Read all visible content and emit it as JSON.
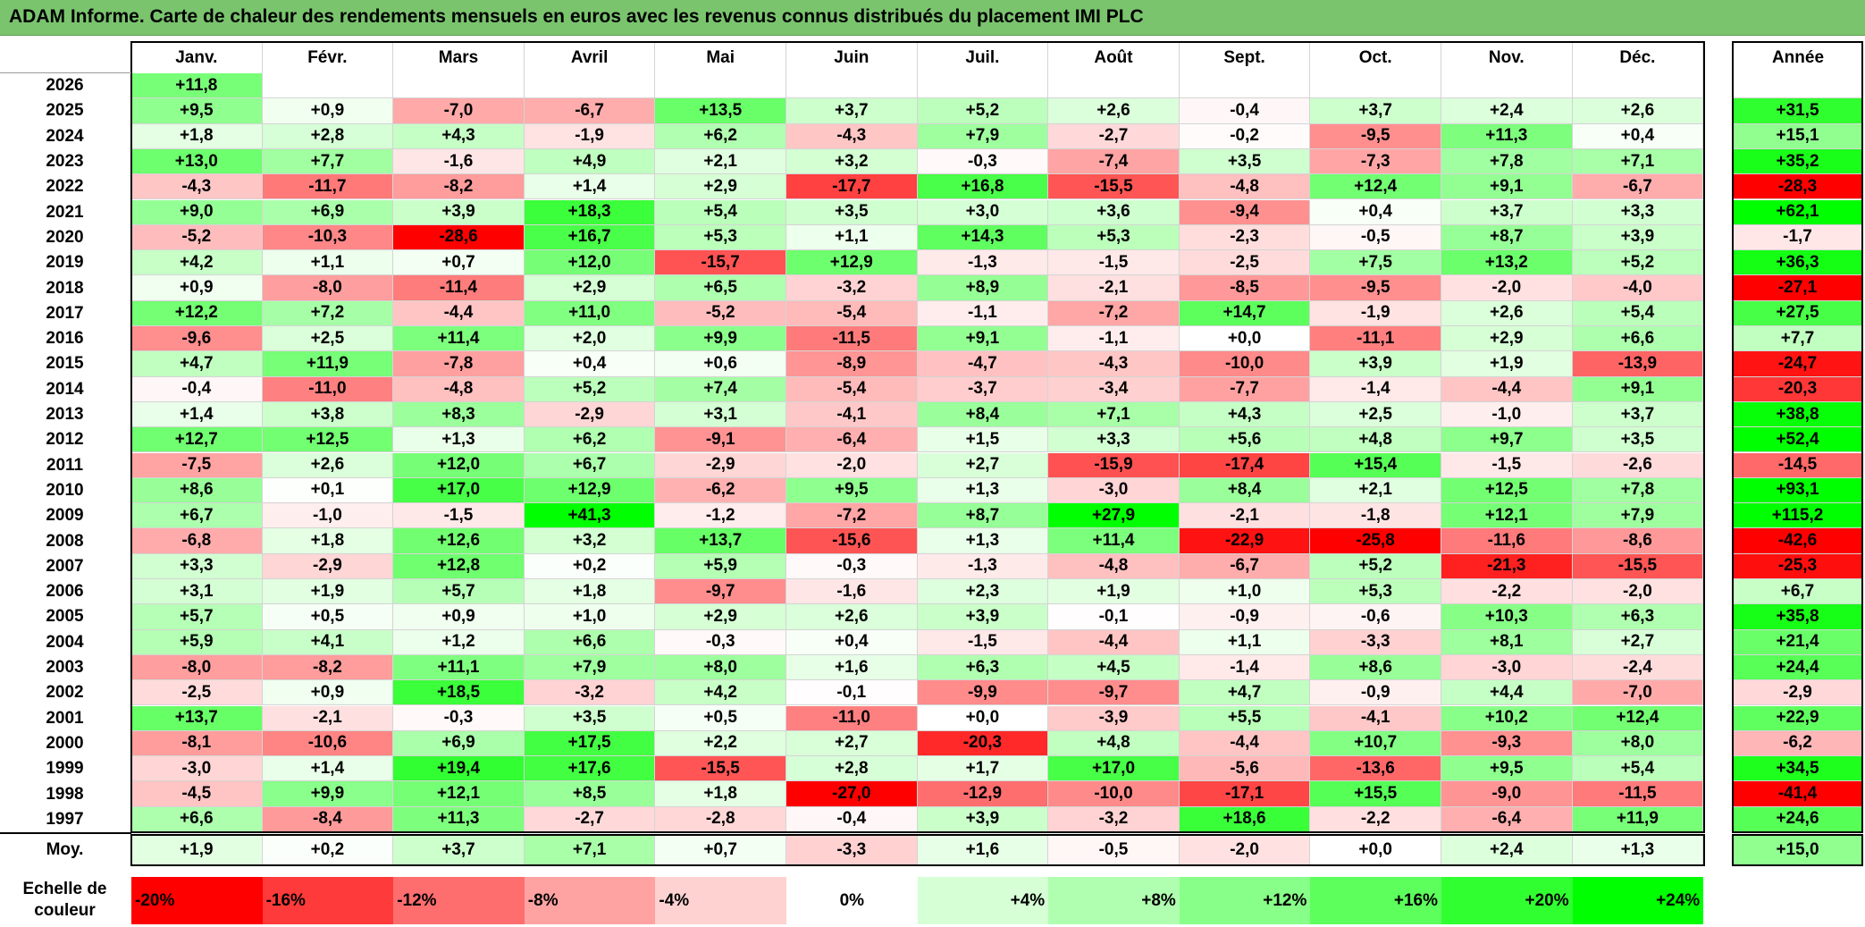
{
  "title": "ADAM Informe. Carte de chaleur des rendements mensuels en euros avec les revenus connus distribués du placement IMI PLC",
  "chart_data": {
    "type": "heatmap",
    "title": "ADAM Informe. Carte de chaleur des rendements mensuels en euros avec les revenus connus distribués du placement IMI PLC",
    "columns": [
      "Janv.",
      "Févr.",
      "Mars",
      "Avril",
      "Mai",
      "Juin",
      "Juil.",
      "Août",
      "Sept.",
      "Oct.",
      "Nov.",
      "Déc."
    ],
    "annual_label": "Année",
    "rows": [
      {
        "year": "2026",
        "months": [
          "+11,8",
          "",
          "",
          "",
          "",
          "",
          "",
          "",
          "",
          "",
          "",
          ""
        ],
        "annual": ""
      },
      {
        "year": "2025",
        "months": [
          "+9,5",
          "+0,9",
          "-7,0",
          "-6,7",
          "+13,5",
          "+3,7",
          "+5,2",
          "+2,6",
          "-0,4",
          "+3,7",
          "+2,4",
          "+2,6"
        ],
        "annual": "+31,5"
      },
      {
        "year": "2024",
        "months": [
          "+1,8",
          "+2,8",
          "+4,3",
          "-1,9",
          "+6,2",
          "-4,3",
          "+7,9",
          "-2,7",
          "-0,2",
          "-9,5",
          "+11,3",
          "+0,4"
        ],
        "annual": "+15,1"
      },
      {
        "year": "2023",
        "months": [
          "+13,0",
          "+7,7",
          "-1,6",
          "+4,9",
          "+2,1",
          "+3,2",
          "-0,3",
          "-7,4",
          "+3,5",
          "-7,3",
          "+7,8",
          "+7,1"
        ],
        "annual": "+35,2"
      },
      {
        "year": "2022",
        "months": [
          "-4,3",
          "-11,7",
          "-8,2",
          "+1,4",
          "+2,9",
          "-17,7",
          "+16,8",
          "-15,5",
          "-4,8",
          "+12,4",
          "+9,1",
          "-6,7"
        ],
        "annual": "-28,3"
      },
      {
        "year": "2021",
        "months": [
          "+9,0",
          "+6,9",
          "+3,9",
          "+18,3",
          "+5,4",
          "+3,5",
          "+3,0",
          "+3,6",
          "-9,4",
          "+0,4",
          "+3,7",
          "+3,3"
        ],
        "annual": "+62,1"
      },
      {
        "year": "2020",
        "months": [
          "-5,2",
          "-10,3",
          "-28,6",
          "+16,7",
          "+5,3",
          "+1,1",
          "+14,3",
          "+5,3",
          "-2,3",
          "-0,5",
          "+8,7",
          "+3,9"
        ],
        "annual": "-1,7"
      },
      {
        "year": "2019",
        "months": [
          "+4,2",
          "+1,1",
          "+0,7",
          "+12,0",
          "-15,7",
          "+12,9",
          "-1,3",
          "-1,5",
          "-2,5",
          "+7,5",
          "+13,2",
          "+5,2"
        ],
        "annual": "+36,3"
      },
      {
        "year": "2018",
        "months": [
          "+0,9",
          "-8,0",
          "-11,4",
          "+2,9",
          "+6,5",
          "-3,2",
          "+8,9",
          "-2,1",
          "-8,5",
          "-9,5",
          "-2,0",
          "-4,0"
        ],
        "annual": "-27,1"
      },
      {
        "year": "2017",
        "months": [
          "+12,2",
          "+7,2",
          "-4,4",
          "+11,0",
          "-5,2",
          "-5,4",
          "-1,1",
          "-7,2",
          "+14,7",
          "-1,9",
          "+2,6",
          "+5,4"
        ],
        "annual": "+27,5"
      },
      {
        "year": "2016",
        "months": [
          "-9,6",
          "+2,5",
          "+11,4",
          "+2,0",
          "+9,9",
          "-11,5",
          "+9,1",
          "-1,1",
          "+0,0",
          "-11,1",
          "+2,9",
          "+6,6"
        ],
        "annual": "+7,7"
      },
      {
        "year": "2015",
        "months": [
          "+4,7",
          "+11,9",
          "-7,8",
          "+0,4",
          "+0,6",
          "-8,9",
          "-4,7",
          "-4,3",
          "-10,0",
          "+3,9",
          "+1,9",
          "-13,9"
        ],
        "annual": "-24,7"
      },
      {
        "year": "2014",
        "months": [
          "-0,4",
          "-11,0",
          "-4,8",
          "+5,2",
          "+7,4",
          "-5,4",
          "-3,7",
          "-3,4",
          "-7,7",
          "-1,4",
          "-4,4",
          "+9,1"
        ],
        "annual": "-20,3"
      },
      {
        "year": "2013",
        "months": [
          "+1,4",
          "+3,8",
          "+8,3",
          "-2,9",
          "+3,1",
          "-4,1",
          "+8,4",
          "+7,1",
          "+4,3",
          "+2,5",
          "-1,0",
          "+3,7"
        ],
        "annual": "+38,8"
      },
      {
        "year": "2012",
        "months": [
          "+12,7",
          "+12,5",
          "+1,3",
          "+6,2",
          "-9,1",
          "-6,4",
          "+1,5",
          "+3,3",
          "+5,6",
          "+4,8",
          "+9,7",
          "+3,5"
        ],
        "annual": "+52,4"
      },
      {
        "year": "2011",
        "months": [
          "-7,5",
          "+2,6",
          "+12,0",
          "+6,7",
          "-2,9",
          "-2,0",
          "+2,7",
          "-15,9",
          "-17,4",
          "+15,4",
          "-1,5",
          "-2,6"
        ],
        "annual": "-14,5"
      },
      {
        "year": "2010",
        "months": [
          "+8,6",
          "+0,1",
          "+17,0",
          "+12,9",
          "-6,2",
          "+9,5",
          "+1,3",
          "-3,0",
          "+8,4",
          "+2,1",
          "+12,5",
          "+7,8"
        ],
        "annual": "+93,1"
      },
      {
        "year": "2009",
        "months": [
          "+6,7",
          "-1,0",
          "-1,5",
          "+41,3",
          "-1,2",
          "-7,2",
          "+8,7",
          "+27,9",
          "-2,1",
          "-1,8",
          "+12,1",
          "+7,9"
        ],
        "annual": "+115,2"
      },
      {
        "year": "2008",
        "months": [
          "-6,8",
          "+1,8",
          "+12,6",
          "+3,2",
          "+13,7",
          "-15,6",
          "+1,3",
          "+11,4",
          "-22,9",
          "-25,8",
          "-11,6",
          "-8,6"
        ],
        "annual": "-42,6"
      },
      {
        "year": "2007",
        "months": [
          "+3,3",
          "-2,9",
          "+12,8",
          "+0,2",
          "+5,9",
          "-0,3",
          "-1,3",
          "-4,8",
          "-6,7",
          "+5,2",
          "-21,3",
          "-15,5"
        ],
        "annual": "-25,3"
      },
      {
        "year": "2006",
        "months": [
          "+3,1",
          "+1,9",
          "+5,7",
          "+1,8",
          "-9,7",
          "-1,6",
          "+2,3",
          "+1,9",
          "+1,0",
          "+5,3",
          "-2,2",
          "-2,0"
        ],
        "annual": "+6,7"
      },
      {
        "year": "2005",
        "months": [
          "+5,7",
          "+0,5",
          "+0,9",
          "+1,0",
          "+2,9",
          "+2,6",
          "+3,9",
          "-0,1",
          "-0,9",
          "-0,6",
          "+10,3",
          "+6,3"
        ],
        "annual": "+35,8"
      },
      {
        "year": "2004",
        "months": [
          "+5,9",
          "+4,1",
          "+1,2",
          "+6,6",
          "-0,3",
          "+0,4",
          "-1,5",
          "-4,4",
          "+1,1",
          "-3,3",
          "+8,1",
          "+2,7"
        ],
        "annual": "+21,4"
      },
      {
        "year": "2003",
        "months": [
          "-8,0",
          "-8,2",
          "+11,1",
          "+7,9",
          "+8,0",
          "+1,6",
          "+6,3",
          "+4,5",
          "-1,4",
          "+8,6",
          "-3,0",
          "-2,4"
        ],
        "annual": "+24,4"
      },
      {
        "year": "2002",
        "months": [
          "-2,5",
          "+0,9",
          "+18,5",
          "-3,2",
          "+4,2",
          "-0,1",
          "-9,9",
          "-9,7",
          "+4,7",
          "-0,9",
          "+4,4",
          "-7,0"
        ],
        "annual": "-2,9"
      },
      {
        "year": "2001",
        "months": [
          "+13,7",
          "-2,1",
          "-0,3",
          "+3,5",
          "+0,5",
          "-11,0",
          "+0,0",
          "-3,9",
          "+5,5",
          "-4,1",
          "+10,2",
          "+12,4"
        ],
        "annual": "+22,9"
      },
      {
        "year": "2000",
        "months": [
          "-8,1",
          "-10,6",
          "+6,9",
          "+17,5",
          "+2,2",
          "+2,7",
          "-20,3",
          "+4,8",
          "-4,4",
          "+10,7",
          "-9,3",
          "+8,0"
        ],
        "annual": "-6,2"
      },
      {
        "year": "1999",
        "months": [
          "-3,0",
          "+1,4",
          "+19,4",
          "+17,6",
          "-15,5",
          "+2,8",
          "+1,7",
          "+17,0",
          "-5,6",
          "-13,6",
          "+9,5",
          "+5,4"
        ],
        "annual": "+34,5"
      },
      {
        "year": "1998",
        "months": [
          "-4,5",
          "+9,9",
          "+12,1",
          "+8,5",
          "+1,8",
          "-27,0",
          "-12,9",
          "-10,0",
          "-17,1",
          "+15,5",
          "-9,0",
          "-11,5"
        ],
        "annual": "-41,4"
      },
      {
        "year": "1997",
        "months": [
          "+6,6",
          "-8,4",
          "+11,3",
          "-2,7",
          "-2,8",
          "-0,4",
          "+3,9",
          "-3,2",
          "+18,6",
          "-2,2",
          "-6,4",
          "+11,9"
        ],
        "annual": "+24,6"
      }
    ],
    "average": {
      "label": "Moy.",
      "months": [
        "+1,9",
        "+0,2",
        "+3,7",
        "+7,1",
        "+0,7",
        "-3,3",
        "+1,6",
        "-0,5",
        "-2,0",
        "+0,0",
        "+2,4",
        "+1,3"
      ],
      "annual": "+15,0"
    },
    "color_scale": {
      "label_line1": "Echelle de",
      "label_line2": "couleur",
      "stops": [
        "-20%",
        "-16%",
        "-12%",
        "-8%",
        "-4%",
        "0%",
        "+4%",
        "+8%",
        "+12%",
        "+16%",
        "+20%",
        "+24%"
      ],
      "stop_values": [
        -20,
        -16,
        -12,
        -8,
        -4,
        0,
        4,
        8,
        12,
        16,
        20,
        24
      ],
      "colors": [
        "#ff0000",
        "#ff3a3a",
        "#ff6e6e",
        "#ffa2a2",
        "#ffd2d2",
        "#ffffff",
        "#d6ffd6",
        "#b0ffb0",
        "#88ff88",
        "#5cff5c",
        "#30ff30",
        "#00ff00"
      ]
    }
  }
}
